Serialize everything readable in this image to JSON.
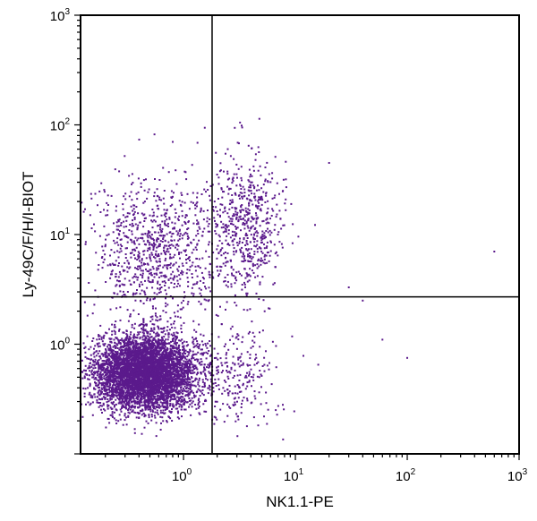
{
  "chart_data": {
    "type": "scatter",
    "title": "",
    "xlabel": "NK1.1-PE",
    "ylabel": "Ly-49C/F/H/I-BIOT",
    "x_scale": "log",
    "y_scale": "log",
    "xlim": [
      0.12,
      1000
    ],
    "ylim": [
      0.1,
      1000
    ],
    "grid": false,
    "legend": "none",
    "point_color": "#5b1a8c",
    "x_ticks": [
      {
        "base": "10",
        "exp": "0",
        "value": 1
      },
      {
        "base": "10",
        "exp": "1",
        "value": 10
      },
      {
        "base": "10",
        "exp": "2",
        "value": 100
      },
      {
        "base": "10",
        "exp": "3",
        "value": 1000
      }
    ],
    "y_ticks": [
      {
        "base": "10",
        "exp": "0",
        "value": 1
      },
      {
        "base": "10",
        "exp": "1",
        "value": 10
      },
      {
        "base": "10",
        "exp": "2",
        "value": 100
      },
      {
        "base": "10",
        "exp": "3",
        "value": 1000
      }
    ],
    "quadrant_gates": {
      "x": 1.8,
      "y": 2.7
    },
    "populations": [
      {
        "x_center": 0.47,
        "y_center": 0.55,
        "x_spread_decades": 0.22,
        "y_spread_decades": 0.17,
        "events": 5200
      },
      {
        "x_center": 0.55,
        "y_center": 7.0,
        "x_spread_decades": 0.3,
        "y_spread_decades": 0.32,
        "events": 900
      },
      {
        "x_center": 3.6,
        "y_center": 12.0,
        "x_spread_decades": 0.17,
        "y_spread_decades": 0.3,
        "events": 600
      },
      {
        "x_center": 2.8,
        "y_center": 0.55,
        "x_spread_decades": 0.2,
        "y_spread_decades": 0.22,
        "events": 250
      },
      {
        "x_center": 0.25,
        "y_center": 0.55,
        "x_spread_decades": 0.12,
        "y_spread_decades": 0.15,
        "events": 250
      }
    ],
    "sparse_points": [
      {
        "x": 600,
        "y": 7
      },
      {
        "x": 100,
        "y": 0.75
      },
      {
        "x": 60,
        "y": 1.1
      },
      {
        "x": 30,
        "y": 3.3
      },
      {
        "x": 40,
        "y": 2.5
      },
      {
        "x": 20,
        "y": 45
      },
      {
        "x": 16,
        "y": 0.65
      },
      {
        "x": 3.2,
        "y": 105
      },
      {
        "x": 0.55,
        "y": 82
      },
      {
        "x": 0.8,
        "y": 70
      },
      {
        "x": 1000,
        "y": 8
      }
    ]
  }
}
